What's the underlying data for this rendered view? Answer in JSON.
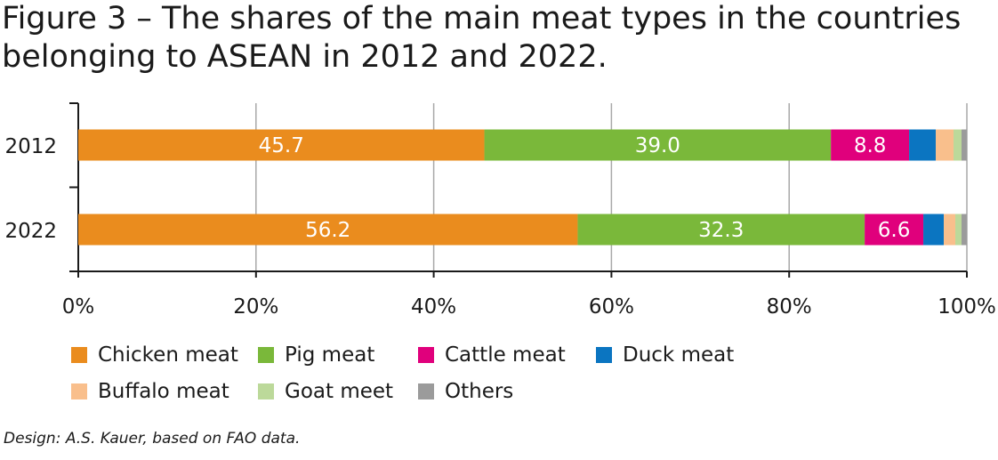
{
  "title": {
    "line1": "Figure 3 – The shares of the main meat types in the countries",
    "line2": "belonging to ASEAN in 2012 and 2022."
  },
  "credit": "Design: A.S. Kauer, based on FAO data.",
  "chart_data": {
    "type": "bar",
    "orientation": "horizontal",
    "stacked": true,
    "title": "Figure 3 – The shares of the main meat types in the countries belonging to ASEAN in 2012 and 2022.",
    "categories": [
      "2012",
      "2022"
    ],
    "xlim": [
      0,
      100
    ],
    "xticks": [
      "0%",
      "20%",
      "40%",
      "60%",
      "80%",
      "100%"
    ],
    "grid": true,
    "legend_position": "bottom",
    "series": [
      {
        "name": "Chicken meat",
        "color": "#ea8c1e",
        "values": [
          45.7,
          56.2
        ],
        "labels": [
          "45.7",
          "56.2"
        ]
      },
      {
        "name": "Pig meat",
        "color": "#7ab83a",
        "values": [
          39.0,
          32.3
        ],
        "labels": [
          "39.0",
          "32.3"
        ]
      },
      {
        "name": "Cattle meat",
        "color": "#e0007c",
        "values": [
          8.8,
          6.6
        ],
        "labels": [
          "8.8",
          "6.6"
        ]
      },
      {
        "name": "Duck meat",
        "color": "#0b75c1",
        "values": [
          3.0,
          2.3
        ],
        "labels": [
          "",
          ""
        ]
      },
      {
        "name": "Buffalo meat",
        "color": "#f9bf8c",
        "values": [
          2.0,
          1.3
        ],
        "labels": [
          "",
          ""
        ]
      },
      {
        "name": "Goat meet",
        "color": "#bcd99a",
        "values": [
          0.9,
          0.7
        ],
        "labels": [
          "",
          ""
        ]
      },
      {
        "name": "Others",
        "color": "#9b9b9b",
        "values": [
          0.6,
          0.6
        ],
        "labels": [
          "",
          ""
        ]
      }
    ]
  }
}
